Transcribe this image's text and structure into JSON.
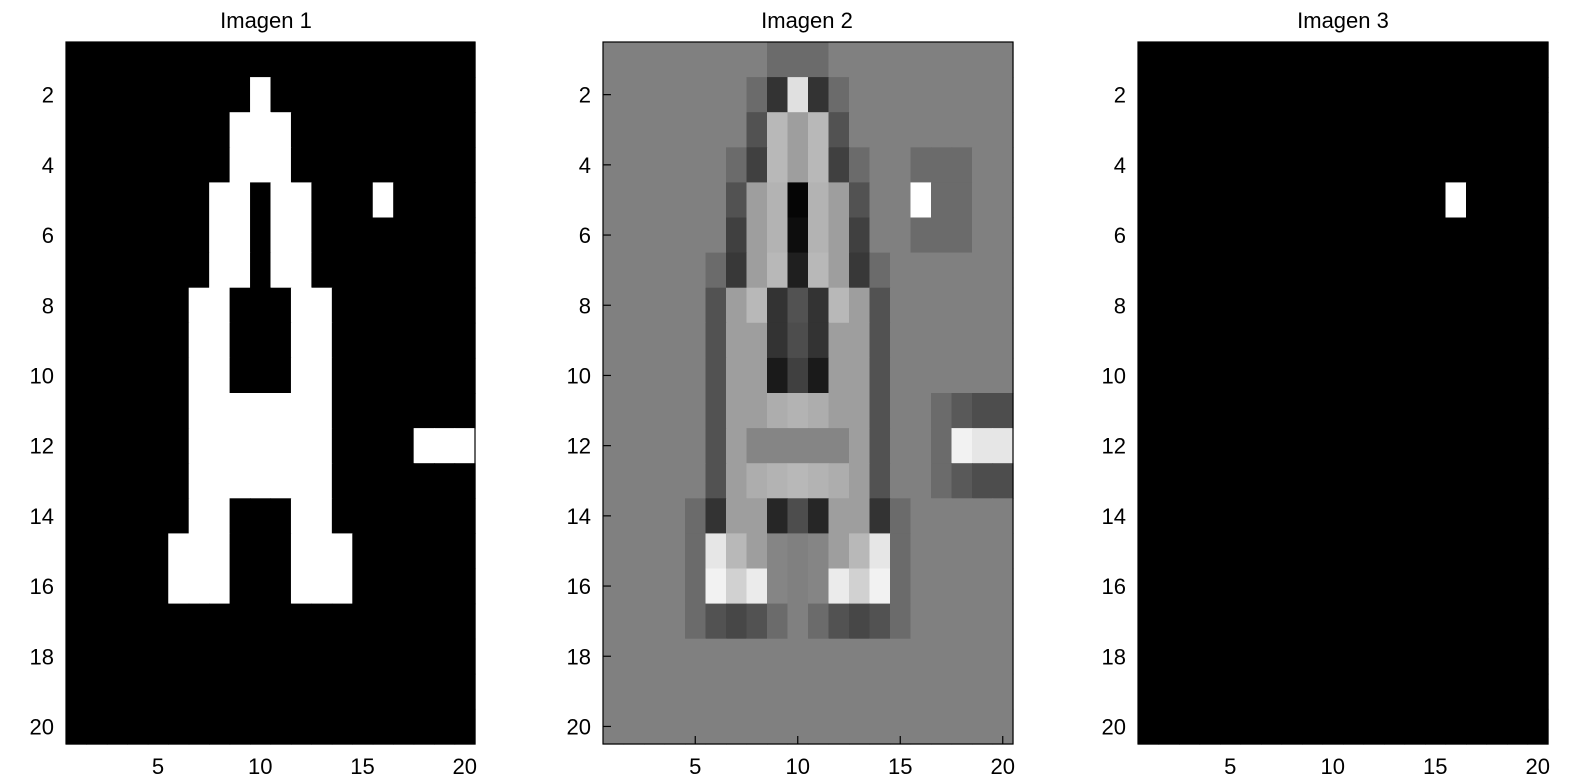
{
  "chart_data": [
    {
      "type": "heatmap",
      "title": "Imagen 1",
      "colormap": "gray",
      "clim": [
        0,
        1
      ],
      "xlim": [
        0.5,
        20.5
      ],
      "ylim": [
        0.5,
        20.5
      ],
      "y_reversed": true,
      "xticks": [
        5,
        10,
        15,
        20
      ],
      "yticks": [
        2,
        4,
        6,
        8,
        10,
        12,
        14,
        16,
        18,
        20
      ],
      "grid": false,
      "values": [
        [
          0,
          0,
          0,
          0,
          0,
          0,
          0,
          0,
          0,
          0,
          0,
          0,
          0,
          0,
          0,
          0,
          0,
          0,
          0,
          0
        ],
        [
          0,
          0,
          0,
          0,
          0,
          0,
          0,
          0,
          0,
          1,
          0,
          0,
          0,
          0,
          0,
          0,
          0,
          0,
          0,
          0
        ],
        [
          0,
          0,
          0,
          0,
          0,
          0,
          0,
          0,
          1,
          1,
          1,
          0,
          0,
          0,
          0,
          0,
          0,
          0,
          0,
          0
        ],
        [
          0,
          0,
          0,
          0,
          0,
          0,
          0,
          0,
          1,
          1,
          1,
          0,
          0,
          0,
          0,
          0,
          0,
          0,
          0,
          0
        ],
        [
          0,
          0,
          0,
          0,
          0,
          0,
          0,
          1,
          1,
          0,
          1,
          1,
          0,
          0,
          0,
          1,
          0,
          0,
          0,
          0
        ],
        [
          0,
          0,
          0,
          0,
          0,
          0,
          0,
          1,
          1,
          0,
          1,
          1,
          0,
          0,
          0,
          0,
          0,
          0,
          0,
          0
        ],
        [
          0,
          0,
          0,
          0,
          0,
          0,
          0,
          1,
          1,
          0,
          1,
          1,
          0,
          0,
          0,
          0,
          0,
          0,
          0,
          0
        ],
        [
          0,
          0,
          0,
          0,
          0,
          0,
          1,
          1,
          0,
          0,
          0,
          1,
          1,
          0,
          0,
          0,
          0,
          0,
          0,
          0
        ],
        [
          0,
          0,
          0,
          0,
          0,
          0,
          1,
          1,
          0,
          0,
          0,
          1,
          1,
          0,
          0,
          0,
          0,
          0,
          0,
          0
        ],
        [
          0,
          0,
          0,
          0,
          0,
          0,
          1,
          1,
          0,
          0,
          0,
          1,
          1,
          0,
          0,
          0,
          0,
          0,
          0,
          0
        ],
        [
          0,
          0,
          0,
          0,
          0,
          0,
          1,
          1,
          1,
          1,
          1,
          1,
          1,
          0,
          0,
          0,
          0,
          0,
          0,
          0
        ],
        [
          0,
          0,
          0,
          0,
          0,
          0,
          1,
          1,
          1,
          1,
          1,
          1,
          1,
          0,
          0,
          0,
          0,
          1,
          1,
          1
        ],
        [
          0,
          0,
          0,
          0,
          0,
          0,
          1,
          1,
          1,
          1,
          1,
          1,
          1,
          0,
          0,
          0,
          0,
          0,
          0,
          0
        ],
        [
          0,
          0,
          0,
          0,
          0,
          0,
          1,
          1,
          0,
          0,
          0,
          1,
          1,
          0,
          0,
          0,
          0,
          0,
          0,
          0
        ],
        [
          0,
          0,
          0,
          0,
          0,
          1,
          1,
          1,
          0,
          0,
          0,
          1,
          1,
          1,
          0,
          0,
          0,
          0,
          0,
          0
        ],
        [
          0,
          0,
          0,
          0,
          0,
          1,
          1,
          1,
          0,
          0,
          0,
          1,
          1,
          1,
          0,
          0,
          0,
          0,
          0,
          0
        ],
        [
          0,
          0,
          0,
          0,
          0,
          0,
          0,
          0,
          0,
          0,
          0,
          0,
          0,
          0,
          0,
          0,
          0,
          0,
          0,
          0
        ],
        [
          0,
          0,
          0,
          0,
          0,
          0,
          0,
          0,
          0,
          0,
          0,
          0,
          0,
          0,
          0,
          0,
          0,
          0,
          0,
          0
        ],
        [
          0,
          0,
          0,
          0,
          0,
          0,
          0,
          0,
          0,
          0,
          0,
          0,
          0,
          0,
          0,
          0,
          0,
          0,
          0,
          0
        ],
        [
          0,
          0,
          0,
          0,
          0,
          0,
          0,
          0,
          0,
          0,
          0,
          0,
          0,
          0,
          0,
          0,
          0,
          0,
          0,
          0
        ]
      ]
    },
    {
      "type": "heatmap",
      "title": "Imagen 2",
      "colormap": "gray",
      "clim": [
        0,
        1
      ],
      "xlim": [
        0.5,
        20.5
      ],
      "ylim": [
        0.5,
        20.5
      ],
      "y_reversed": true,
      "xticks": [
        5,
        10,
        15,
        20
      ],
      "yticks": [
        2,
        4,
        6,
        8,
        10,
        12,
        14,
        16,
        18,
        20
      ],
      "grid": false,
      "values": [
        [
          0.5,
          0.5,
          0.5,
          0.5,
          0.5,
          0.5,
          0.5,
          0.5,
          0.42,
          0.42,
          0.42,
          0.5,
          0.5,
          0.5,
          0.5,
          0.5,
          0.5,
          0.5,
          0.5,
          0.5
        ],
        [
          0.5,
          0.5,
          0.5,
          0.5,
          0.5,
          0.5,
          0.5,
          0.42,
          0.2,
          0.88,
          0.2,
          0.42,
          0.5,
          0.5,
          0.5,
          0.5,
          0.5,
          0.5,
          0.5,
          0.5
        ],
        [
          0.5,
          0.5,
          0.5,
          0.5,
          0.5,
          0.5,
          0.5,
          0.32,
          0.72,
          0.62,
          0.72,
          0.32,
          0.5,
          0.5,
          0.5,
          0.5,
          0.5,
          0.5,
          0.5,
          0.5
        ],
        [
          0.5,
          0.5,
          0.5,
          0.5,
          0.5,
          0.5,
          0.42,
          0.25,
          0.72,
          0.62,
          0.72,
          0.25,
          0.42,
          0.5,
          0.5,
          0.42,
          0.42,
          0.42,
          0.5,
          0.5
        ],
        [
          0.5,
          0.5,
          0.5,
          0.5,
          0.5,
          0.5,
          0.32,
          0.62,
          0.7,
          0.02,
          0.7,
          0.62,
          0.32,
          0.5,
          0.5,
          1.0,
          0.42,
          0.42,
          0.5,
          0.5
        ],
        [
          0.5,
          0.5,
          0.5,
          0.5,
          0.5,
          0.5,
          0.25,
          0.62,
          0.7,
          0.05,
          0.7,
          0.62,
          0.25,
          0.5,
          0.5,
          0.42,
          0.42,
          0.42,
          0.5,
          0.5
        ],
        [
          0.5,
          0.5,
          0.5,
          0.5,
          0.5,
          0.42,
          0.22,
          0.62,
          0.72,
          0.12,
          0.72,
          0.62,
          0.22,
          0.42,
          0.5,
          0.5,
          0.5,
          0.5,
          0.5,
          0.5
        ],
        [
          0.5,
          0.5,
          0.5,
          0.5,
          0.5,
          0.32,
          0.62,
          0.72,
          0.2,
          0.32,
          0.2,
          0.72,
          0.62,
          0.32,
          0.5,
          0.5,
          0.5,
          0.5,
          0.5,
          0.5
        ],
        [
          0.5,
          0.5,
          0.5,
          0.5,
          0.5,
          0.32,
          0.62,
          0.62,
          0.2,
          0.3,
          0.2,
          0.62,
          0.62,
          0.32,
          0.5,
          0.5,
          0.5,
          0.5,
          0.5,
          0.5
        ],
        [
          0.5,
          0.5,
          0.5,
          0.5,
          0.5,
          0.32,
          0.62,
          0.62,
          0.1,
          0.25,
          0.1,
          0.62,
          0.62,
          0.32,
          0.5,
          0.5,
          0.5,
          0.5,
          0.5,
          0.5
        ],
        [
          0.5,
          0.5,
          0.5,
          0.5,
          0.5,
          0.32,
          0.62,
          0.62,
          0.68,
          0.7,
          0.68,
          0.62,
          0.62,
          0.32,
          0.5,
          0.5,
          0.42,
          0.35,
          0.3,
          0.3
        ],
        [
          0.5,
          0.5,
          0.5,
          0.5,
          0.5,
          0.32,
          0.62,
          0.52,
          0.52,
          0.52,
          0.52,
          0.52,
          0.62,
          0.32,
          0.5,
          0.5,
          0.42,
          0.95,
          0.9,
          0.9
        ],
        [
          0.5,
          0.5,
          0.5,
          0.5,
          0.5,
          0.32,
          0.62,
          0.68,
          0.7,
          0.72,
          0.7,
          0.68,
          0.62,
          0.32,
          0.5,
          0.5,
          0.42,
          0.35,
          0.3,
          0.3
        ],
        [
          0.5,
          0.5,
          0.5,
          0.5,
          0.42,
          0.2,
          0.62,
          0.62,
          0.15,
          0.3,
          0.15,
          0.62,
          0.62,
          0.2,
          0.42,
          0.5,
          0.5,
          0.5,
          0.5,
          0.5
        ],
        [
          0.5,
          0.5,
          0.5,
          0.5,
          0.42,
          0.9,
          0.72,
          0.62,
          0.52,
          0.5,
          0.52,
          0.62,
          0.72,
          0.9,
          0.42,
          0.5,
          0.5,
          0.5,
          0.5,
          0.5
        ],
        [
          0.5,
          0.5,
          0.5,
          0.5,
          0.42,
          0.95,
          0.82,
          0.92,
          0.52,
          0.5,
          0.52,
          0.92,
          0.82,
          0.95,
          0.42,
          0.5,
          0.5,
          0.5,
          0.5,
          0.5
        ],
        [
          0.5,
          0.5,
          0.5,
          0.5,
          0.42,
          0.32,
          0.28,
          0.32,
          0.42,
          0.5,
          0.42,
          0.32,
          0.28,
          0.32,
          0.42,
          0.5,
          0.5,
          0.5,
          0.5,
          0.5
        ],
        [
          0.5,
          0.5,
          0.5,
          0.5,
          0.5,
          0.5,
          0.5,
          0.5,
          0.5,
          0.5,
          0.5,
          0.5,
          0.5,
          0.5,
          0.5,
          0.5,
          0.5,
          0.5,
          0.5,
          0.5
        ],
        [
          0.5,
          0.5,
          0.5,
          0.5,
          0.5,
          0.5,
          0.5,
          0.5,
          0.5,
          0.5,
          0.5,
          0.5,
          0.5,
          0.5,
          0.5,
          0.5,
          0.5,
          0.5,
          0.5,
          0.5
        ],
        [
          0.5,
          0.5,
          0.5,
          0.5,
          0.5,
          0.5,
          0.5,
          0.5,
          0.5,
          0.5,
          0.5,
          0.5,
          0.5,
          0.5,
          0.5,
          0.5,
          0.5,
          0.5,
          0.5,
          0.5
        ]
      ]
    },
    {
      "type": "heatmap",
      "title": "Imagen 3",
      "colormap": "gray",
      "clim": [
        0,
        1
      ],
      "xlim": [
        0.5,
        20.5
      ],
      "ylim": [
        0.5,
        20.5
      ],
      "y_reversed": true,
      "xticks": [
        5,
        10,
        15,
        20
      ],
      "yticks": [
        2,
        4,
        6,
        8,
        10,
        12,
        14,
        16,
        18,
        20
      ],
      "grid": false,
      "values": [
        [
          0,
          0,
          0,
          0,
          0,
          0,
          0,
          0,
          0,
          0,
          0,
          0,
          0,
          0,
          0,
          0,
          0,
          0,
          0,
          0
        ],
        [
          0,
          0,
          0,
          0,
          0,
          0,
          0,
          0,
          0,
          0,
          0,
          0,
          0,
          0,
          0,
          0,
          0,
          0,
          0,
          0
        ],
        [
          0,
          0,
          0,
          0,
          0,
          0,
          0,
          0,
          0,
          0,
          0,
          0,
          0,
          0,
          0,
          0,
          0,
          0,
          0,
          0
        ],
        [
          0,
          0,
          0,
          0,
          0,
          0,
          0,
          0,
          0,
          0,
          0,
          0,
          0,
          0,
          0,
          0,
          0,
          0,
          0,
          0
        ],
        [
          0,
          0,
          0,
          0,
          0,
          0,
          0,
          0,
          0,
          0,
          0,
          0,
          0,
          0,
          0,
          1,
          0,
          0,
          0,
          0
        ],
        [
          0,
          0,
          0,
          0,
          0,
          0,
          0,
          0,
          0,
          0,
          0,
          0,
          0,
          0,
          0,
          0,
          0,
          0,
          0,
          0
        ],
        [
          0,
          0,
          0,
          0,
          0,
          0,
          0,
          0,
          0,
          0,
          0,
          0,
          0,
          0,
          0,
          0,
          0,
          0,
          0,
          0
        ],
        [
          0,
          0,
          0,
          0,
          0,
          0,
          0,
          0,
          0,
          0,
          0,
          0,
          0,
          0,
          0,
          0,
          0,
          0,
          0,
          0
        ],
        [
          0,
          0,
          0,
          0,
          0,
          0,
          0,
          0,
          0,
          0,
          0,
          0,
          0,
          0,
          0,
          0,
          0,
          0,
          0,
          0
        ],
        [
          0,
          0,
          0,
          0,
          0,
          0,
          0,
          0,
          0,
          0,
          0,
          0,
          0,
          0,
          0,
          0,
          0,
          0,
          0,
          0
        ],
        [
          0,
          0,
          0,
          0,
          0,
          0,
          0,
          0,
          0,
          0,
          0,
          0,
          0,
          0,
          0,
          0,
          0,
          0,
          0,
          0
        ],
        [
          0,
          0,
          0,
          0,
          0,
          0,
          0,
          0,
          0,
          0,
          0,
          0,
          0,
          0,
          0,
          0,
          0,
          0,
          0,
          0
        ],
        [
          0,
          0,
          0,
          0,
          0,
          0,
          0,
          0,
          0,
          0,
          0,
          0,
          0,
          0,
          0,
          0,
          0,
          0,
          0,
          0
        ],
        [
          0,
          0,
          0,
          0,
          0,
          0,
          0,
          0,
          0,
          0,
          0,
          0,
          0,
          0,
          0,
          0,
          0,
          0,
          0,
          0
        ],
        [
          0,
          0,
          0,
          0,
          0,
          0,
          0,
          0,
          0,
          0,
          0,
          0,
          0,
          0,
          0,
          0,
          0,
          0,
          0,
          0
        ],
        [
          0,
          0,
          0,
          0,
          0,
          0,
          0,
          0,
          0,
          0,
          0,
          0,
          0,
          0,
          0,
          0,
          0,
          0,
          0,
          0
        ],
        [
          0,
          0,
          0,
          0,
          0,
          0,
          0,
          0,
          0,
          0,
          0,
          0,
          0,
          0,
          0,
          0,
          0,
          0,
          0,
          0
        ],
        [
          0,
          0,
          0,
          0,
          0,
          0,
          0,
          0,
          0,
          0,
          0,
          0,
          0,
          0,
          0,
          0,
          0,
          0,
          0,
          0
        ],
        [
          0,
          0,
          0,
          0,
          0,
          0,
          0,
          0,
          0,
          0,
          0,
          0,
          0,
          0,
          0,
          0,
          0,
          0,
          0,
          0
        ],
        [
          0,
          0,
          0,
          0,
          0,
          0,
          0,
          0,
          0,
          0,
          0,
          0,
          0,
          0,
          0,
          0,
          0,
          0,
          0,
          0
        ]
      ]
    }
  ]
}
